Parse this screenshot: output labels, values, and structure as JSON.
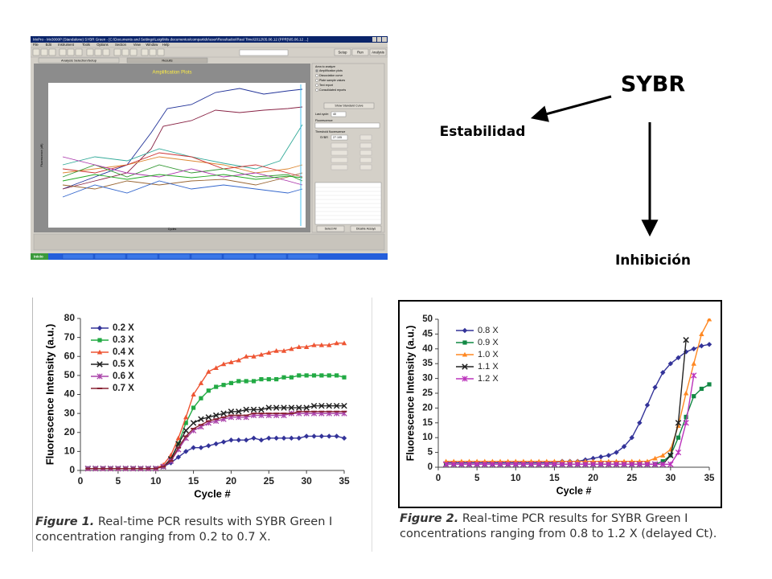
{
  "slide": {
    "title": "SYBR",
    "left_label": "Estabilidad",
    "bottom_label": "Inhibición"
  },
  "screenshot": {
    "window_title": "MxPro - Mx3000P (Standalone) SYBR Green - [C:\\Documents and Settings\\Luigi\\Mis documentos\\compartido\\user\\Resultados\\Real Time\\2012\\05.06.12 (PPR)\\05.06.12 ...]",
    "menu": [
      "File",
      "Edit",
      "Instrument",
      "Tools",
      "Options",
      "Section",
      "View",
      "Window",
      "Help"
    ],
    "buttons": [
      "Setup",
      "Run",
      "Analysis"
    ],
    "tabs": [
      "Analysis Selection/Setup",
      "Results"
    ],
    "plot_title": "Amplification Plots",
    "x_label": "Cycles",
    "y_label": "Fluorescence (dR)",
    "panel": {
      "heading": "Area to analyze",
      "options": [
        "Amplification plots",
        "Dissociation curve",
        "Plate sample values",
        "Text report",
        "Consolidated reports"
      ],
      "standard_curve": "Show Standard Curve",
      "last_cycle_label": "Last cycle:",
      "last_cycle": "40",
      "fluorescence": "Fluorescence",
      "threshold": "Threshold fluorescence",
      "assay": "SYBR",
      "threshold_value": "27.105",
      "select_all": "Select All",
      "disable": "Disable Assays"
    },
    "start": "Inicio"
  },
  "chart_data": [
    {
      "type": "line",
      "caption_label": "Figure 1.",
      "caption": "Real-time PCR results with SYBR Green I concentration ranging from 0.2 to 0.7 X.",
      "xlabel": "Cycle #",
      "ylabel": "Fluorescence Intensity (a.u.)",
      "x": [
        1,
        2,
        3,
        4,
        5,
        6,
        7,
        8,
        9,
        10,
        11,
        12,
        13,
        14,
        15,
        16,
        17,
        18,
        19,
        20,
        21,
        22,
        23,
        24,
        25,
        26,
        27,
        28,
        29,
        30,
        31,
        32,
        33,
        34,
        35
      ],
      "xlim": [
        0,
        35
      ],
      "xticks": [
        0,
        5,
        10,
        15,
        20,
        25,
        30,
        35
      ],
      "ylim": [
        0,
        80
      ],
      "yticks": [
        0,
        10,
        20,
        30,
        40,
        50,
        60,
        70,
        80
      ],
      "legend": "upper left",
      "series": [
        {
          "name": "0.2 X",
          "color": "#333399",
          "marker": "diamond",
          "values": [
            1,
            1,
            1,
            1,
            1,
            1,
            1,
            1,
            1,
            1,
            2,
            4,
            7,
            10,
            12,
            12,
            13,
            14,
            15,
            16,
            16,
            16,
            17,
            16,
            17,
            17,
            17,
            17,
            17,
            18,
            18,
            18,
            18,
            18,
            17
          ]
        },
        {
          "name": "0.3 X",
          "color": "#22aa44",
          "marker": "square",
          "values": [
            1,
            1,
            1,
            1,
            1,
            1,
            1,
            1,
            1,
            1,
            2,
            6,
            14,
            25,
            33,
            38,
            42,
            44,
            45,
            46,
            47,
            47,
            47,
            48,
            48,
            48,
            49,
            49,
            50,
            50,
            50,
            50,
            50,
            50,
            49
          ]
        },
        {
          "name": "0.4 X",
          "color": "#ee5533",
          "marker": "triangle",
          "values": [
            1,
            1,
            1,
            1,
            1,
            1,
            1,
            1,
            1,
            1,
            3,
            8,
            17,
            28,
            40,
            46,
            52,
            54,
            56,
            57,
            58,
            60,
            60,
            61,
            62,
            63,
            63,
            64,
            65,
            65,
            66,
            66,
            66,
            67,
            67
          ]
        },
        {
          "name": "0.5 X",
          "color": "#222222",
          "marker": "x",
          "values": [
            1,
            1,
            1,
            1,
            1,
            1,
            1,
            1,
            1,
            1,
            2,
            6,
            14,
            21,
            25,
            27,
            28,
            29,
            30,
            31,
            31,
            32,
            32,
            32,
            33,
            33,
            33,
            33,
            33,
            33,
            34,
            34,
            34,
            34,
            34
          ]
        },
        {
          "name": "0.6 X",
          "color": "#aa44aa",
          "marker": "star",
          "values": [
            1,
            1,
            1,
            1,
            1,
            1,
            1,
            1,
            1,
            1,
            2,
            5,
            11,
            17,
            21,
            23,
            25,
            26,
            27,
            28,
            28,
            28,
            29,
            29,
            29,
            29,
            29,
            30,
            30,
            30,
            30,
            30,
            30,
            30,
            30
          ]
        },
        {
          "name": "0.7 X",
          "color": "#882233",
          "marker": "dash",
          "values": [
            1,
            1,
            1,
            1,
            1,
            1,
            1,
            1,
            1,
            1,
            2,
            5,
            12,
            18,
            22,
            24,
            26,
            27,
            28,
            29,
            29,
            29,
            30,
            30,
            30,
            30,
            30,
            30,
            31,
            31,
            31,
            31,
            31,
            31,
            31
          ]
        }
      ]
    },
    {
      "type": "line",
      "caption_label": "Figure 2.",
      "caption": "Real-time PCR results for SYBR Green I concentrations ranging from 0.8  to 1.2 X (delayed Ct).",
      "xlabel": "Cycle #",
      "ylabel": "Fluorescence Intensity (a.u.)",
      "x": [
        1,
        2,
        3,
        4,
        5,
        6,
        7,
        8,
        9,
        10,
        11,
        12,
        13,
        14,
        15,
        16,
        17,
        18,
        19,
        20,
        21,
        22,
        23,
        24,
        25,
        26,
        27,
        28,
        29,
        30,
        31,
        32,
        33,
        34,
        35
      ],
      "xlim": [
        0,
        35
      ],
      "xticks": [
        0,
        5,
        10,
        15,
        20,
        25,
        30,
        35
      ],
      "ylim": [
        0,
        50
      ],
      "yticks": [
        0,
        5,
        10,
        15,
        20,
        25,
        30,
        35,
        40,
        45,
        50
      ],
      "legend": "upper left",
      "series": [
        {
          "name": "0.8 X",
          "color": "#333399",
          "marker": "diamond",
          "values": [
            1.5,
            1.5,
            1.5,
            1.5,
            1.5,
            1.5,
            1.5,
            1.5,
            1.5,
            1.5,
            1.5,
            1.5,
            1.5,
            1.5,
            1.5,
            2,
            2,
            2,
            2.5,
            3,
            3.5,
            4,
            5,
            7,
            10,
            15,
            21,
            27,
            32,
            35,
            37,
            39,
            40,
            41,
            41.5
          ]
        },
        {
          "name": "0.9 X",
          "color": "#118844",
          "marker": "square",
          "values": [
            1,
            1,
            1,
            1,
            1,
            1,
            1,
            1,
            1,
            1,
            1,
            1,
            1,
            1,
            1,
            1,
            1,
            1,
            1,
            1,
            1,
            1,
            1,
            1,
            1,
            1,
            1,
            1,
            2,
            4,
            10,
            17,
            24,
            26.5,
            28
          ]
        },
        {
          "name": "1.0 X",
          "color": "#ff8822",
          "marker": "triangle",
          "values": [
            2,
            2,
            2,
            2,
            2,
            2,
            2,
            2,
            2,
            2,
            2,
            2,
            2,
            2,
            2,
            2,
            2,
            2,
            2,
            2,
            2,
            2,
            2,
            2,
            2,
            2,
            2,
            3,
            4,
            6,
            14,
            25,
            35,
            45,
            50
          ]
        },
        {
          "name": "1.1 X",
          "color": "#222222",
          "marker": "x",
          "values": [
            1,
            1,
            1,
            1,
            1,
            1,
            1,
            1,
            1,
            1,
            1,
            1,
            1,
            1,
            1,
            1,
            1,
            1,
            1,
            1,
            1,
            1,
            1,
            1,
            1,
            1,
            1,
            1,
            1,
            4,
            15,
            43,
            null,
            null,
            null
          ]
        },
        {
          "name": "1.2 X",
          "color": "#bb33bb",
          "marker": "star",
          "values": [
            1,
            1,
            1,
            1,
            1,
            1,
            1,
            1,
            1,
            1,
            1,
            1,
            1,
            1,
            1,
            1,
            1,
            1,
            1,
            1,
            1,
            1,
            1,
            1,
            1,
            1,
            1,
            1,
            1,
            1,
            5,
            15,
            31,
            null,
            null
          ]
        }
      ]
    }
  ]
}
